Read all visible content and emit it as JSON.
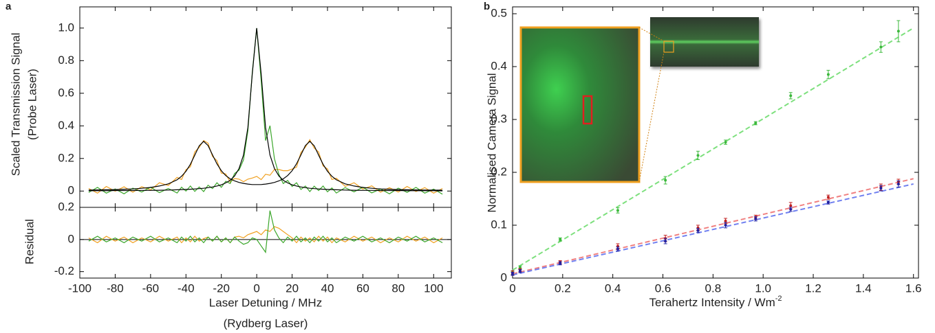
{
  "chart_data": [
    {
      "type": "line",
      "panel_label": "a",
      "y_label": [
        "Scaled Transmission Signal",
        "(Probe Laser)"
      ],
      "x_label": [
        "Laser Detuning / MHz",
        "(Rydberg Laser)"
      ],
      "xlim": [
        -100,
        110
      ],
      "xticks": [
        -100,
        -80,
        -60,
        -40,
        -20,
        0,
        20,
        40,
        60,
        80,
        100
      ],
      "ylim": [
        -0.1,
        1.13
      ],
      "yticks": [
        0,
        0.2,
        0.4,
        0.6,
        0.8,
        {
          "value": 1,
          "label": "1.0"
        }
      ],
      "x": [
        -95,
        -90,
        -85,
        -80,
        -75,
        -70,
        -65,
        -60,
        -55,
        -50,
        -45,
        -42.5,
        -40,
        -37.5,
        -35,
        -32.5,
        -30,
        -27.5,
        -25,
        -22.5,
        -20,
        -17.5,
        -15,
        -12.5,
        -10,
        -7.5,
        -5,
        -2.5,
        0,
        2.5,
        5,
        7.5,
        10,
        12.5,
        15,
        17.5,
        20,
        22.5,
        25,
        27.5,
        30,
        32.5,
        35,
        37.5,
        40,
        42.5,
        45,
        50,
        55,
        60,
        65,
        70,
        75,
        80,
        85,
        90,
        95,
        100,
        105
      ],
      "series": [
        {
          "color": "#f0a020",
          "values": [
            0.016,
            -0.013,
            0.028,
            -0.001,
            0.026,
            -0.007,
            0.027,
            0.007,
            0.051,
            0.034,
            0.084,
            0.071,
            0.131,
            0.149,
            0.24,
            0.268,
            0.31,
            0.294,
            0.212,
            0.187,
            0.11,
            0.105,
            0.055,
            0.077,
            0.073,
            0.057,
            0.073,
            0.08,
            0.09,
            0.07,
            0.103,
            0.097,
            0.133,
            0.132,
            0.125,
            0.125,
            0.135,
            0.147,
            0.237,
            0.269,
            0.315,
            0.263,
            0.24,
            0.154,
            0.136,
            0.071,
            0.079,
            0.029,
            0.051,
            0.012,
            0.032,
            -0.007,
            0.021,
            -0.006,
            0.028,
            -0.003,
            0.021,
            -0.013,
            0.016
          ]
        },
        {
          "color": "#3aa62a",
          "values": [
            -0.008,
            0.022,
            -0.013,
            0.013,
            -0.017,
            0.018,
            -0.006,
            0.024,
            -0.01,
            0.016,
            -0.012,
            0.024,
            0,
            0.031,
            -0.002,
            0.025,
            -0.003,
            0.036,
            0.015,
            0.051,
            0.023,
            0.06,
            0.046,
            0.108,
            0.128,
            0.191,
            0.37,
            0.729,
            1.0,
            0.679,
            0.31,
            0.401,
            0.198,
            0.103,
            0.046,
            0.065,
            0.028,
            0.051,
            0.01,
            0.031,
            -0.003,
            0.03,
            0.003,
            0.031,
            -0.005,
            0.019,
            -0.012,
            0.021,
            -0.005,
            0.024,
            -0.011,
            0.013,
            -0.017,
            0.018,
            -0.008,
            0.022,
            -0.013,
            0.012,
            -0.019
          ]
        },
        {
          "color": "#000000",
          "values": [
            0.006,
            0.007,
            0.008,
            0.009,
            0.011,
            0.013,
            0.017,
            0.022,
            0.031,
            0.044,
            0.069,
            0.091,
            0.121,
            0.164,
            0.22,
            0.278,
            0.305,
            0.279,
            0.222,
            0.167,
            0.125,
            0.095,
            0.075,
            0.062,
            0.053,
            0.047,
            0.043,
            0.04,
            0.04,
            0.04,
            0.043,
            0.047,
            0.053,
            0.062,
            0.075,
            0.095,
            0.125,
            0.167,
            0.222,
            0.279,
            0.305,
            0.278,
            0.22,
            0.164,
            0.121,
            0.091,
            0.069,
            0.044,
            0.031,
            0.022,
            0.017,
            0.013,
            0.011,
            0.009,
            0.008,
            0.007,
            0.006,
            0.006,
            0.005
          ]
        },
        {
          "color": "#000000",
          "values": [
            0.002,
            0.002,
            0.002,
            0.003,
            0.003,
            0.003,
            0.004,
            0.004,
            0.005,
            0.006,
            0.008,
            0.009,
            0.01,
            0.011,
            0.013,
            0.015,
            0.017,
            0.021,
            0.025,
            0.031,
            0.038,
            0.05,
            0.066,
            0.093,
            0.138,
            0.221,
            0.39,
            0.719,
            1.0,
            0.719,
            0.39,
            0.221,
            0.138,
            0.093,
            0.066,
            0.05,
            0.038,
            0.031,
            0.025,
            0.021,
            0.017,
            0.015,
            0.013,
            0.011,
            0.01,
            0.009,
            0.008,
            0.006,
            0.005,
            0.004,
            0.004,
            0.003,
            0.003,
            0.003,
            0.002,
            0.002,
            0.002,
            0.002,
            0.001
          ]
        }
      ],
      "residual": {
        "y_label": "Residual",
        "ylim": [
          -0.24,
          0.2
        ],
        "yticks": [
          -0.2,
          0,
          0.2
        ],
        "series": [
          {
            "color": "#f0a020",
            "values": [
              0.01,
              -0.02,
              0.02,
              -0.01,
              0.015,
              -0.02,
              0.01,
              -0.015,
              0.02,
              -0.01,
              0.015,
              -0.02,
              0.01,
              -0.015,
              0.02,
              -0.01,
              0.005,
              0.015,
              -0.01,
              0.02,
              -0.015,
              0.01,
              -0.02,
              0.015,
              0.02,
              0.01,
              0.03,
              0.04,
              0.05,
              0.03,
              0.06,
              0.05,
              0.08,
              0.07,
              0.05,
              0.03,
              0.01,
              -0.02,
              0.015,
              -0.01,
              0.01,
              -0.015,
              0.02,
              -0.01,
              0.015,
              -0.02,
              0.01,
              -0.015,
              0.02,
              -0.01,
              0.015,
              -0.02,
              0.01,
              -0.015,
              0.02,
              -0.01,
              0.015,
              -0.02,
              0.01
            ]
          },
          {
            "color": "#3aa62a",
            "values": [
              -0.01,
              0.02,
              -0.015,
              0.01,
              -0.02,
              0.015,
              -0.01,
              0.02,
              -0.015,
              0.01,
              -0.02,
              0.015,
              -0.01,
              0.02,
              -0.015,
              0.01,
              -0.02,
              0.015,
              -0.01,
              0.02,
              -0.015,
              0.01,
              -0.02,
              0.015,
              -0.01,
              -0.03,
              -0.02,
              0.01,
              0,
              -0.04,
              -0.08,
              0.18,
              0.06,
              0.01,
              -0.02,
              0.015,
              -0.01,
              0.02,
              -0.015,
              0.01,
              -0.02,
              0.015,
              -0.01,
              0.02,
              -0.015,
              0.01,
              -0.02,
              0.015,
              -0.01,
              0.02,
              -0.015,
              0.01,
              -0.02,
              0.015,
              -0.01,
              0.02,
              -0.015,
              0.01,
              -0.02
            ]
          }
        ]
      }
    },
    {
      "type": "scatter",
      "panel_label": "b",
      "y_label": "Normalised Camera Signal",
      "x_label": "Terahertz Intensity / Wm",
      "x_label_sup": "-2",
      "xlim": [
        0,
        1.62
      ],
      "xticks": [
        0,
        0.2,
        0.4,
        0.6,
        0.8,
        {
          "value": 1,
          "label": "1.0"
        },
        1.2,
        1.4,
        1.6
      ],
      "ylim": [
        0,
        0.513
      ],
      "yticks": [
        0,
        0.1,
        0.2,
        0.3,
        0.4,
        0.5
      ],
      "x": [
        0,
        0.03,
        0.19,
        0.42,
        0.61,
        0.74,
        0.85,
        0.97,
        1.11,
        1.26,
        1.47,
        1.54
      ],
      "fit_x": [
        0,
        1.6
      ],
      "series": [
        {
          "color": "#3cb83c",
          "fit_color": "#7de07d",
          "values": [
            0.01,
            0.02,
            0.073,
            0.128,
            0.185,
            0.232,
            0.257,
            0.293,
            0.345,
            0.385,
            0.437,
            0.467
          ],
          "errors": [
            0.003,
            0.003,
            0.003,
            0.005,
            0.007,
            0.008,
            0.004,
            0.003,
            0.006,
            0.008,
            0.01,
            0.02
          ],
          "fit_values": [
            0.015,
            0.473
          ]
        },
        {
          "color": "#c02020",
          "fit_color": "#f08080",
          "values": [
            0.01,
            0.015,
            0.03,
            0.06,
            0.075,
            0.095,
            0.108,
            0.115,
            0.137,
            0.153,
            0.172,
            0.182
          ],
          "errors": [
            0.004,
            0.003,
            0.003,
            0.005,
            0.006,
            0.005,
            0.005,
            0.004,
            0.006,
            0.004,
            0.006,
            0.005
          ],
          "fit_values": [
            0.008,
            0.188
          ]
        },
        {
          "color": "#2020a0",
          "fit_color": "#7080f0",
          "values": [
            0.008,
            0.013,
            0.028,
            0.055,
            0.07,
            0.09,
            0.1,
            0.112,
            0.13,
            0.143,
            0.17,
            0.178
          ],
          "errors": [
            0.003,
            0.003,
            0.003,
            0.004,
            0.005,
            0.004,
            0.005,
            0.004,
            0.004,
            0.003,
            0.005,
            0.006
          ],
          "fit_values": [
            0.006,
            0.178
          ]
        }
      ]
    }
  ]
}
